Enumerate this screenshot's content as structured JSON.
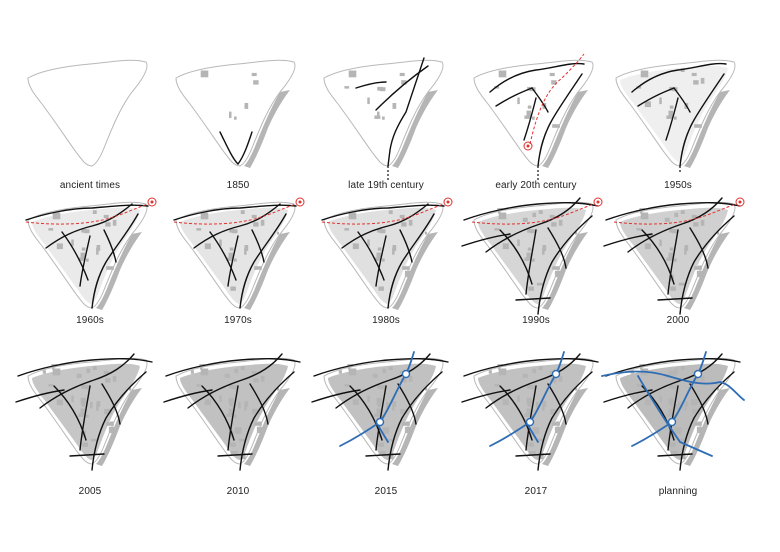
{
  "stages": [
    {
      "label": "ancient times",
      "fill": 0,
      "roads": 0,
      "rail": false,
      "transit": 0,
      "beach": 0
    },
    {
      "label": "1850",
      "fill": 0.1,
      "roads": 1,
      "rail": false,
      "transit": 0,
      "beach": 1
    },
    {
      "label": "late 19th century",
      "fill": 0.3,
      "roads": 2,
      "rail": false,
      "transit": 0,
      "beach": 1
    },
    {
      "label": "early 20th century",
      "fill": 0.35,
      "roads": 3,
      "rail": true,
      "transit": 0,
      "beach": 1
    },
    {
      "label": "1950s",
      "fill": 0.45,
      "roads": 3,
      "rail": false,
      "transit": 0,
      "beach": 1
    },
    {
      "label": "1960s",
      "fill": 0.5,
      "roads": 4,
      "rail": true,
      "transit": 0,
      "beach": 1
    },
    {
      "label": "1970s",
      "fill": 0.55,
      "roads": 4,
      "rail": true,
      "transit": 0,
      "beach": 1
    },
    {
      "label": "1980s",
      "fill": 0.6,
      "roads": 4,
      "rail": true,
      "transit": 0,
      "beach": 1
    },
    {
      "label": "1990s",
      "fill": 0.7,
      "roads": 5,
      "rail": true,
      "transit": 0,
      "beach": 1
    },
    {
      "label": "2000",
      "fill": 0.75,
      "roads": 5,
      "rail": true,
      "transit": 0,
      "beach": 1
    },
    {
      "label": "2005",
      "fill": 0.85,
      "roads": 5,
      "rail": false,
      "transit": 0,
      "beach": 1
    },
    {
      "label": "2010",
      "fill": 0.9,
      "roads": 5,
      "rail": false,
      "transit": 0,
      "beach": 1
    },
    {
      "label": "2015",
      "fill": 0.9,
      "roads": 5,
      "rail": false,
      "transit": 1,
      "beach": 1
    },
    {
      "label": "2017",
      "fill": 0.9,
      "roads": 5,
      "rail": false,
      "transit": 1,
      "beach": 1
    },
    {
      "label": "planning",
      "fill": 0.95,
      "roads": 5,
      "rail": false,
      "transit": 2,
      "beach": 1
    }
  ],
  "colors": {
    "outline": "#b8b8b8",
    "urban": "#b5b5b5",
    "road": "#111111",
    "rail": "#e0312e",
    "transit": "#2f6db5"
  }
}
